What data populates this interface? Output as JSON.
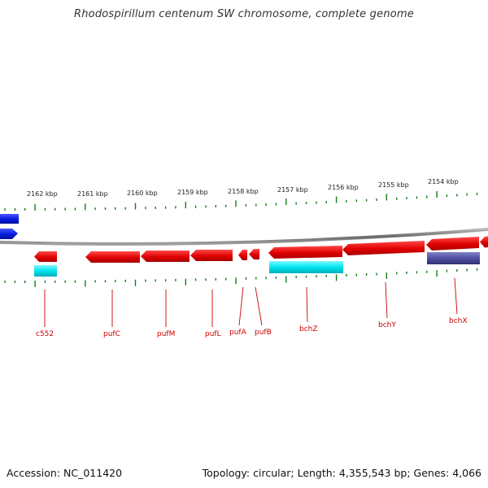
{
  "title": "Rhodospirillum centenum SW chromosome, complete genome",
  "footer": {
    "accession": "Accession: NC_011420",
    "topology": "Topology: circular; Length: 4,355,543 bp; Genes: 4,066"
  },
  "colors": {
    "backbone": "#8c8c8c",
    "tick": "#1a7a1a",
    "gene_red": "#e00000",
    "gene_cyan": "#00e5ee",
    "gene_blue": "#0a1ee0",
    "gene_slate": "#5050a0",
    "label": "#cc0000"
  },
  "kbp_labels": [
    "2162 kbp",
    "2161 kbp",
    "2160 kbp",
    "2159 kbp",
    "2158 kbp",
    "2157 kbp",
    "2156 kbp",
    "2155 kbp",
    "2154 kbp"
  ],
  "gene_labels": [
    "c552",
    "pufC",
    "pufM",
    "pufL",
    "pufA",
    "pufB",
    "bchZ",
    "bchY",
    "bchX"
  ],
  "icons": [
    "gene-arrow-icon"
  ]
}
